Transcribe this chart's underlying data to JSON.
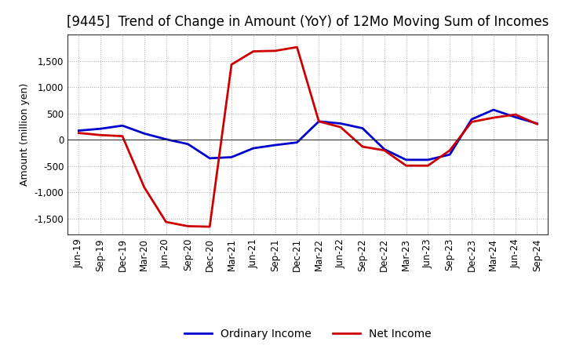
{
  "title": "[9445]  Trend of Change in Amount (YoY) of 12Mo Moving Sum of Incomes",
  "ylabel": "Amount (million yen)",
  "x_labels": [
    "Jun-19",
    "Sep-19",
    "Dec-19",
    "Mar-20",
    "Jun-20",
    "Sep-20",
    "Dec-20",
    "Mar-21",
    "Jun-21",
    "Sep-21",
    "Dec-21",
    "Mar-22",
    "Jun-22",
    "Sep-22",
    "Dec-22",
    "Mar-23",
    "Jun-23",
    "Sep-23",
    "Dec-23",
    "Mar-24",
    "Jun-24",
    "Sep-24"
  ],
  "ordinary_income": [
    175,
    210,
    270,
    120,
    10,
    -80,
    -350,
    -330,
    -160,
    -100,
    -50,
    350,
    310,
    220,
    -180,
    -380,
    -380,
    -280,
    390,
    570,
    430,
    310
  ],
  "net_income": [
    130,
    90,
    70,
    -900,
    -1560,
    -1640,
    -1650,
    1430,
    1680,
    1690,
    1760,
    350,
    240,
    -130,
    -200,
    -490,
    -490,
    -200,
    340,
    420,
    480,
    300
  ],
  "ordinary_color": "#0000cc",
  "net_color": "#cc0000",
  "background_color": "#ffffff",
  "grid_color": "#aaaaaa",
  "ylim": [
    -1800,
    2000
  ],
  "yticks": [
    -1500,
    -1000,
    -500,
    0,
    500,
    1000,
    1500
  ],
  "line_width": 2.0,
  "title_fontsize": 12,
  "legend_fontsize": 10,
  "tick_fontsize": 8.5,
  "ylabel_fontsize": 9
}
